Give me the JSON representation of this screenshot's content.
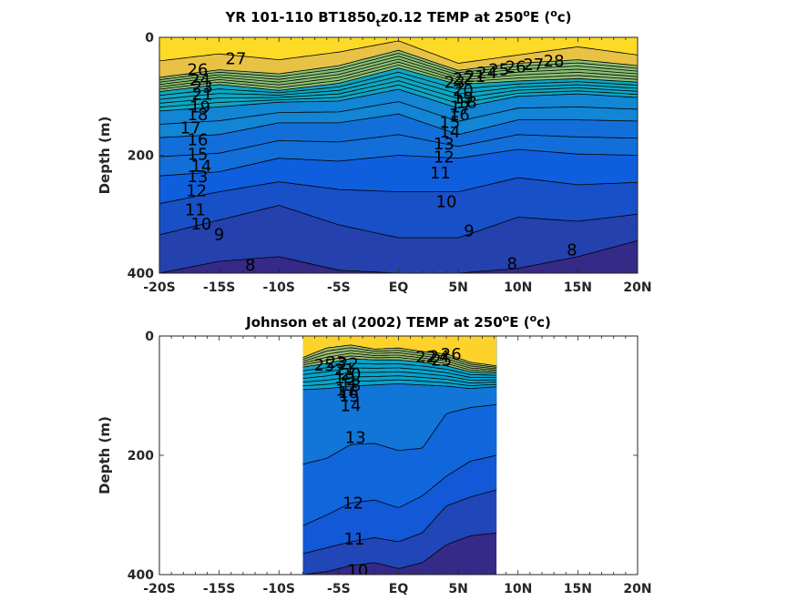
{
  "chart_data": [
    {
      "type": "heatmap",
      "subtype": "filled-contour",
      "title": {
        "prefix": "YR 101-110 BT1850",
        "sub": "t",
        "mid": "z0.12 TEMP at 250",
        "deg": "o",
        "mid2": "E (",
        "deg2": "o",
        "suffix": "c)"
      },
      "ylabel": "Depth (m)",
      "xlim": [
        -20,
        20
      ],
      "ylim": [
        0,
        400
      ],
      "y_reversed": true,
      "x_ticks": [
        -20,
        -15,
        -10,
        -5,
        0,
        5,
        10,
        15,
        20
      ],
      "x_tick_labels": [
        "-20S",
        "-15S",
        "-10S",
        "-5S",
        "EQ",
        "5N",
        "10N",
        "15N",
        "20N"
      ],
      "y_ticks": [
        0,
        200,
        400
      ],
      "y_tick_labels": [
        "0",
        "200",
        "400"
      ],
      "data_extent_x": [
        -20,
        20
      ],
      "colormap": "parula",
      "isotherms": [
        {
          "level": 27,
          "profile": [
            [
              -20,
              40
            ],
            [
              -15,
              28
            ],
            [
              -10,
              38
            ],
            [
              -5,
              25
            ],
            [
              0,
              6
            ],
            [
              5,
              44
            ],
            [
              10,
              30
            ],
            [
              15,
              16
            ],
            [
              20,
              30
            ]
          ]
        },
        {
          "level": 26,
          "profile": [
            [
              -20,
              68
            ],
            [
              -15,
              55
            ],
            [
              -10,
              62
            ],
            [
              -5,
              48
            ],
            [
              0,
              22
            ],
            [
              5,
              56
            ],
            [
              10,
              44
            ],
            [
              15,
              38
            ],
            [
              20,
              48
            ]
          ]
        },
        {
          "level": 20,
          "profile": [
            [
              -20,
              92
            ],
            [
              -15,
              80
            ],
            [
              -10,
              90
            ],
            [
              -5,
              78
            ],
            [
              0,
              52
            ],
            [
              5,
              80
            ],
            [
              10,
              74
            ],
            [
              15,
              70
            ],
            [
              20,
              76
            ]
          ]
        },
        {
          "level": 15,
          "profile": [
            [
              -20,
              125
            ],
            [
              -15,
              118
            ],
            [
              -10,
              110
            ],
            [
              -5,
              108
            ],
            [
              0,
              88
            ],
            [
              5,
              120
            ],
            [
              10,
              100
            ],
            [
              15,
              96
            ],
            [
              20,
              102
            ]
          ]
        },
        {
          "level": 13,
          "profile": [
            [
              -20,
              170
            ],
            [
              -15,
              165
            ],
            [
              -10,
              145
            ],
            [
              -5,
              145
            ],
            [
              0,
              130
            ],
            [
              5,
              165
            ],
            [
              10,
              140
            ],
            [
              15,
              140
            ],
            [
              20,
              142
            ]
          ]
        },
        {
          "level": 11,
          "profile": [
            [
              -20,
              235
            ],
            [
              -15,
              228
            ],
            [
              -10,
              205
            ],
            [
              -5,
              210
            ],
            [
              0,
              200
            ],
            [
              5,
              205
            ],
            [
              10,
              190
            ],
            [
              15,
              198
            ],
            [
              20,
              200
            ]
          ]
        },
        {
          "level": 10,
          "profile": [
            [
              -20,
              282
            ],
            [
              -15,
              262
            ],
            [
              -10,
              245
            ],
            [
              -5,
              258
            ],
            [
              0,
              262
            ],
            [
              5,
              262
            ],
            [
              10,
              238
            ],
            [
              15,
              250
            ],
            [
              20,
              246
            ]
          ]
        },
        {
          "level": 9,
          "profile": [
            [
              -20,
              335
            ],
            [
              -15,
              310
            ],
            [
              -10,
              285
            ],
            [
              -5,
              318
            ],
            [
              0,
              340
            ],
            [
              5,
              340
            ],
            [
              10,
              305
            ],
            [
              15,
              312
            ],
            [
              20,
              300
            ]
          ]
        },
        {
          "level": 8,
          "profile": [
            [
              -20,
              400
            ],
            [
              -15,
              380
            ],
            [
              -10,
              372
            ],
            [
              -5,
              395
            ],
            [
              0,
              400
            ],
            [
              5,
              400
            ],
            [
              10,
              392
            ],
            [
              15,
              372
            ],
            [
              20,
              345
            ]
          ]
        }
      ],
      "contour_labels": [
        {
          "text": "27",
          "x": -13.6,
          "y": 38
        },
        {
          "text": "26",
          "x": -16.8,
          "y": 56
        },
        {
          "text": "24",
          "x": -16.6,
          "y": 73
        },
        {
          "text": "23",
          "x": -16.4,
          "y": 86
        },
        {
          "text": "21",
          "x": -16.4,
          "y": 98
        },
        {
          "text": "19",
          "x": -16.6,
          "y": 120
        },
        {
          "text": "18",
          "x": -16.8,
          "y": 133
        },
        {
          "text": "17",
          "x": -17.4,
          "y": 155
        },
        {
          "text": "16",
          "x": -16.8,
          "y": 175
        },
        {
          "text": "15",
          "x": -16.8,
          "y": 200
        },
        {
          "text": "14",
          "x": -16.5,
          "y": 220
        },
        {
          "text": "13",
          "x": -16.8,
          "y": 238
        },
        {
          "text": "12",
          "x": -16.9,
          "y": 262
        },
        {
          "text": "11",
          "x": -17.0,
          "y": 294
        },
        {
          "text": "10",
          "x": -16.5,
          "y": 318
        },
        {
          "text": "9",
          "x": -15.0,
          "y": 336
        },
        {
          "text": "8",
          "x": -12.4,
          "y": 388
        },
        {
          "text": "23",
          "x": 4.7,
          "y": 78
        },
        {
          "text": "22",
          "x": 5.4,
          "y": 72
        },
        {
          "text": "21",
          "x": 6.4,
          "y": 68
        },
        {
          "text": "24",
          "x": 7.4,
          "y": 62
        },
        {
          "text": "25",
          "x": 8.4,
          "y": 56
        },
        {
          "text": "26",
          "x": 9.8,
          "y": 52
        },
        {
          "text": "27",
          "x": 11.3,
          "y": 48
        },
        {
          "text": "28",
          "x": 13.0,
          "y": 42
        },
        {
          "text": "20",
          "x": 5.4,
          "y": 92
        },
        {
          "text": "19",
          "x": 5.4,
          "y": 104
        },
        {
          "text": "18",
          "x": 5.7,
          "y": 112
        },
        {
          "text": "17",
          "x": 5.2,
          "y": 120
        },
        {
          "text": "16",
          "x": 5.1,
          "y": 133
        },
        {
          "text": "15",
          "x": 4.3,
          "y": 146
        },
        {
          "text": "14",
          "x": 4.3,
          "y": 162
        },
        {
          "text": "13",
          "x": 3.8,
          "y": 182
        },
        {
          "text": "12",
          "x": 3.8,
          "y": 205
        },
        {
          "text": "11",
          "x": 3.5,
          "y": 232
        },
        {
          "text": "10",
          "x": 4.0,
          "y": 280
        },
        {
          "text": "9",
          "x": 5.9,
          "y": 330
        },
        {
          "text": "8",
          "x": 9.5,
          "y": 385
        },
        {
          "text": "8",
          "x": 14.5,
          "y": 362
        }
      ]
    },
    {
      "type": "heatmap",
      "subtype": "filled-contour",
      "title": {
        "prefix": "Johnson et al (2002) TEMP at 250",
        "deg": "o",
        "mid": "E (",
        "deg2": "o",
        "suffix": "c)"
      },
      "ylabel": "Depth (m)",
      "xlim": [
        -20,
        20
      ],
      "ylim": [
        0,
        400
      ],
      "y_reversed": true,
      "x_ticks": [
        -20,
        -15,
        -10,
        -5,
        0,
        5,
        10,
        15,
        20
      ],
      "x_tick_labels": [
        "-20S",
        "-15S",
        "-10S",
        "-5S",
        "EQ",
        "5N",
        "10N",
        "15N",
        "20N"
      ],
      "y_ticks": [
        0,
        200,
        400
      ],
      "y_tick_labels": [
        "0",
        "200",
        "400"
      ],
      "data_extent_x": [
        -8,
        8.2
      ],
      "colormap": "parula",
      "isotherms": [
        {
          "level": 25,
          "profile": [
            [
              -8,
              36
            ],
            [
              -6,
              20
            ],
            [
              -4,
              15
            ],
            [
              -2,
              22
            ],
            [
              0,
              20
            ],
            [
              2,
              26
            ],
            [
              4,
              30
            ],
            [
              6,
              44
            ],
            [
              8.2,
              50
            ]
          ]
        },
        {
          "level": 20,
          "profile": [
            [
              -8,
              52
            ],
            [
              -6,
              46
            ],
            [
              -4,
              38
            ],
            [
              -2,
              40
            ],
            [
              0,
              40
            ],
            [
              2,
              44
            ],
            [
              4,
              50
            ],
            [
              6,
              60
            ],
            [
              8.2,
              62
            ]
          ]
        },
        {
          "level": 14,
          "profile": [
            [
              -8,
              90
            ],
            [
              -6,
              88
            ],
            [
              -4,
              84
            ],
            [
              -2,
              82
            ],
            [
              0,
              80
            ],
            [
              2,
              82
            ],
            [
              4,
              84
            ],
            [
              6,
              88
            ],
            [
              8.2,
              85
            ]
          ]
        },
        {
          "level": 13,
          "profile": [
            [
              -8,
              215
            ],
            [
              -6,
              205
            ],
            [
              -4,
              182
            ],
            [
              -2,
              180
            ],
            [
              0,
              192
            ],
            [
              2,
              188
            ],
            [
              4,
              130
            ],
            [
              6,
              120
            ],
            [
              8.2,
              115
            ]
          ]
        },
        {
          "level": 12,
          "profile": [
            [
              -8,
              318
            ],
            [
              -6,
              300
            ],
            [
              -4,
              280
            ],
            [
              -2,
              275
            ],
            [
              0,
              288
            ],
            [
              2,
              268
            ],
            [
              4,
              235
            ],
            [
              6,
              210
            ],
            [
              8.2,
              200
            ]
          ]
        },
        {
          "level": 11,
          "profile": [
            [
              -8,
              365
            ],
            [
              -6,
              355
            ],
            [
              -4,
              345
            ],
            [
              -2,
              338
            ],
            [
              0,
              345
            ],
            [
              2,
              330
            ],
            [
              4,
              285
            ],
            [
              6,
              270
            ],
            [
              8.2,
              258
            ]
          ]
        },
        {
          "level": 10,
          "profile": [
            [
              -8,
              400
            ],
            [
              -6,
              395
            ],
            [
              -4,
              385
            ],
            [
              -2,
              380
            ],
            [
              0,
              390
            ],
            [
              2,
              380
            ],
            [
              4,
              350
            ],
            [
              6,
              335
            ],
            [
              8.2,
              330
            ]
          ]
        }
      ],
      "contour_labels": [
        {
          "text": "25",
          "x": -6.2,
          "y": 50
        },
        {
          "text": "23",
          "x": -5.2,
          "y": 46
        },
        {
          "text": "22",
          "x": -4.2,
          "y": 48
        },
        {
          "text": "21",
          "x": -4.5,
          "y": 58
        },
        {
          "text": "20",
          "x": -4.0,
          "y": 66
        },
        {
          "text": "19",
          "x": -4.5,
          "y": 72
        },
        {
          "text": "18",
          "x": -4.0,
          "y": 84
        },
        {
          "text": "17",
          "x": -4.4,
          "y": 92
        },
        {
          "text": "16",
          "x": -4.2,
          "y": 96
        },
        {
          "text": "15",
          "x": -4.1,
          "y": 102
        },
        {
          "text": "14",
          "x": -4.0,
          "y": 118
        },
        {
          "text": "22",
          "x": 2.3,
          "y": 37
        },
        {
          "text": "24",
          "x": 3.4,
          "y": 36
        },
        {
          "text": "25",
          "x": 3.6,
          "y": 42
        },
        {
          "text": "26",
          "x": 4.4,
          "y": 32
        },
        {
          "text": "13",
          "x": -3.6,
          "y": 172
        },
        {
          "text": "12",
          "x": -3.8,
          "y": 282
        },
        {
          "text": "11",
          "x": -3.7,
          "y": 342
        },
        {
          "text": "10",
          "x": -3.4,
          "y": 395
        }
      ]
    }
  ]
}
